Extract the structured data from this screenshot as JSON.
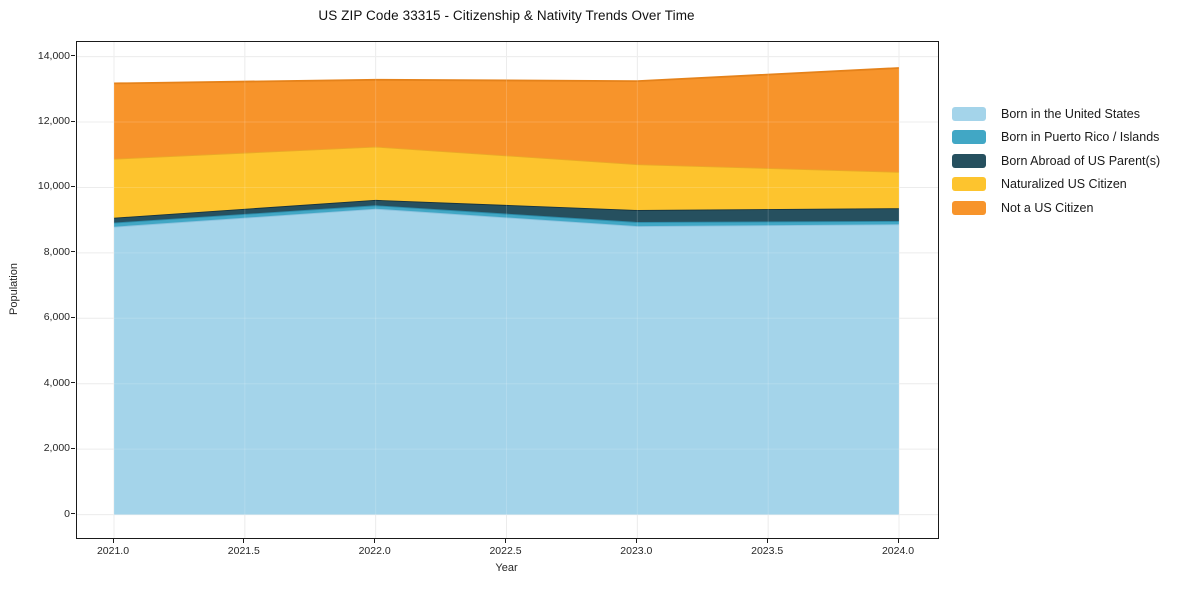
{
  "title": "US ZIP Code 33315 - Citizenship & Nativity Trends Over Time",
  "axes": {
    "xlabel": "Year",
    "ylabel": "Population",
    "x_tick_labels": [
      "2021.0",
      "2021.5",
      "2022.0",
      "2022.5",
      "2023.0",
      "2023.5",
      "2024.0"
    ],
    "y_tick_labels": [
      "0",
      "2,000",
      "4,000",
      "6,000",
      "8,000",
      "10,000",
      "12,000",
      "14,000"
    ]
  },
  "chart_data": {
    "type": "area",
    "stacked": true,
    "title": "US ZIP Code 33315 - Citizenship & Nativity Trends Over Time",
    "xlabel": "Year",
    "ylabel": "Population",
    "x": [
      2021,
      2022,
      2023,
      2024
    ],
    "xlim": [
      2020.85,
      2024.15
    ],
    "ylim": [
      0,
      14000
    ],
    "y_tick_step": 2000,
    "x_tick_step": 0.5,
    "grid": true,
    "legend_position": "right-outside",
    "series": [
      {
        "name": "Born in the United States",
        "color": "#a4d4ea",
        "edge": "#8cc3df",
        "values": [
          8800,
          9350,
          8820,
          8875
        ]
      },
      {
        "name": "Born in Puerto Rico / Islands",
        "color": "#41a7c5",
        "edge": "#2b8aa8",
        "values": [
          125,
          105,
          125,
          100
        ]
      },
      {
        "name": "Born Abroad of US Parent(s)",
        "color": "#26505f",
        "edge": "#16333f",
        "values": [
          150,
          165,
          365,
          390
        ]
      },
      {
        "name": "Naturalized US Citizen",
        "color": "#fdc42e",
        "edge": "#eaa827",
        "values": [
          1805,
          1630,
          1400,
          1110
        ]
      },
      {
        "name": "Not a US Citizen",
        "color": "#f7942b",
        "edge": "#e5821a",
        "values": [
          2300,
          2040,
          2540,
          3175
        ]
      }
    ],
    "cumulative_totals": [
      13180,
      13290,
      13250,
      13650
    ]
  },
  "colors": {
    "grid_under": "#e9e9e9",
    "grid_over": "rgba(255,255,255,0.16)",
    "frame": "#1a1a1a",
    "text": "#262626"
  }
}
